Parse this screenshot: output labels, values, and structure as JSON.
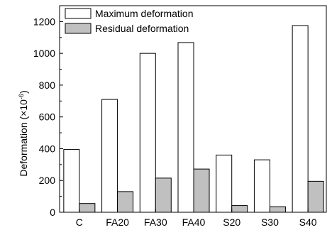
{
  "chart_data": {
    "type": "bar",
    "title": "",
    "xlabel": "",
    "ylabel": "Deformation (×10",
    "ylabel_exp": "-6",
    "ylabel_close": ")",
    "categories": [
      "C",
      "FA20",
      "FA30",
      "FA40",
      "S20",
      "S30",
      "S40"
    ],
    "series": [
      {
        "name": "Maximum deformation",
        "values": [
          395,
          710,
          1000,
          1068,
          360,
          330,
          1175
        ],
        "color": "#ffffff"
      },
      {
        "name": "Residual deformation",
        "values": [
          55,
          130,
          215,
          272,
          42,
          35,
          195
        ],
        "color": "#c0c0c0"
      }
    ],
    "ylim": [
      0,
      1300
    ],
    "yticks": [
      0,
      200,
      400,
      600,
      800,
      1000,
      1200
    ],
    "grid": false,
    "legend_position": "top-left"
  }
}
